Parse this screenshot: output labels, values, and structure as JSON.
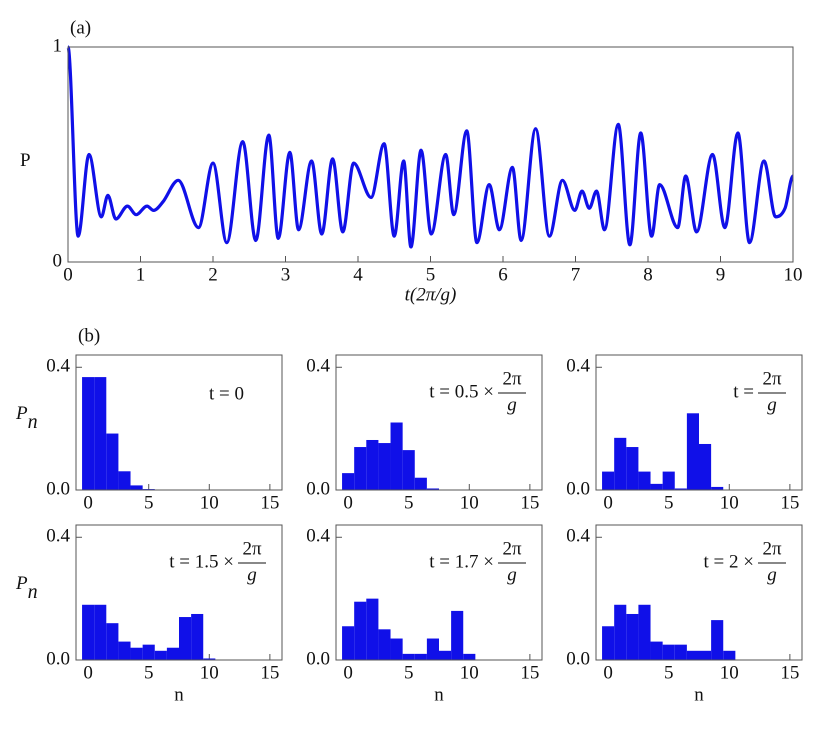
{
  "chart_data": [
    {
      "type": "line",
      "panel_label": "(a)",
      "ylabel": "P",
      "xlabel": "t(2π/g)",
      "color": "#1010e8",
      "xlim": [
        0,
        10
      ],
      "ylim": [
        0,
        1
      ],
      "xticks": [
        0,
        1,
        2,
        3,
        4,
        5,
        6,
        7,
        8,
        9,
        10
      ],
      "yticks": [
        0,
        1
      ],
      "x": [
        0,
        0.14,
        0.29,
        0.46,
        0.55,
        0.66,
        0.82,
        0.94,
        1.09,
        1.18,
        1.31,
        1.52,
        1.8,
        2.0,
        2.19,
        2.41,
        2.59,
        2.77,
        2.9,
        3.06,
        3.18,
        3.36,
        3.5,
        3.65,
        3.79,
        3.94,
        4.18,
        4.36,
        4.5,
        4.63,
        4.73,
        4.87,
        5.01,
        5.21,
        5.32,
        5.5,
        5.64,
        5.81,
        5.95,
        6.13,
        6.25,
        6.45,
        6.64,
        6.82,
        6.99,
        7.09,
        7.19,
        7.29,
        7.4,
        7.59,
        7.75,
        7.9,
        8.05,
        8.16,
        8.41,
        8.52,
        8.67,
        8.89,
        9.06,
        9.24,
        9.4,
        9.6,
        9.76,
        9.89,
        10
      ],
      "values": [
        1,
        0.12,
        0.5,
        0.21,
        0.31,
        0.2,
        0.26,
        0.22,
        0.26,
        0.24,
        0.28,
        0.38,
        0.16,
        0.46,
        0.09,
        0.56,
        0.1,
        0.59,
        0.11,
        0.51,
        0.15,
        0.47,
        0.13,
        0.48,
        0.14,
        0.46,
        0.3,
        0.55,
        0.12,
        0.47,
        0.07,
        0.52,
        0.13,
        0.5,
        0.22,
        0.61,
        0.09,
        0.36,
        0.15,
        0.44,
        0.1,
        0.62,
        0.12,
        0.38,
        0.24,
        0.33,
        0.25,
        0.33,
        0.15,
        0.64,
        0.08,
        0.6,
        0.12,
        0.36,
        0.16,
        0.4,
        0.14,
        0.5,
        0.16,
        0.6,
        0.09,
        0.47,
        0.21,
        0.25,
        0.4
      ]
    },
    {
      "type": "histogram",
      "panel_label": "(b)",
      "ylabel": "P",
      "ylabel_subscript": "n",
      "color": "#1010e8",
      "annotation": {
        "text": "t = 0"
      },
      "xlim": [
        -1,
        16
      ],
      "ylim": [
        0,
        0.44
      ],
      "xticks": [
        0,
        5,
        10,
        15
      ],
      "yticks": [
        {
          "value": 0,
          "label": "0.0"
        },
        0.4
      ],
      "bins": [
        -0.5,
        0.5,
        1.5,
        2.5,
        3.5,
        4.5,
        5.5,
        6.5,
        7.5,
        8.5,
        9.5,
        10.5,
        11.5,
        12.5,
        13.5,
        14.5,
        15.5
      ],
      "values": [
        0.368,
        0.368,
        0.184,
        0.061,
        0.015,
        0.003,
        0,
        0,
        0,
        0,
        0,
        0,
        0,
        0,
        0,
        0
      ]
    },
    {
      "type": "histogram",
      "color": "#1010e8",
      "annotation": {
        "text": "t = 0.5 ×",
        "numerator": "2π",
        "denominator": "g"
      },
      "xlim": [
        -1,
        16
      ],
      "ylim": [
        0,
        0.44
      ],
      "xticks": [
        0,
        5,
        10,
        15
      ],
      "yticks": [
        {
          "value": 0,
          "label": "0.0"
        },
        0.4
      ],
      "bins": [
        -0.5,
        0.5,
        1.5,
        2.5,
        3.5,
        4.5,
        5.5,
        6.5,
        7.5,
        8.5,
        9.5,
        10.5,
        11.5,
        12.5,
        13.5,
        14.5,
        15.5
      ],
      "values": [
        0.055,
        0.14,
        0.163,
        0.153,
        0.22,
        0.13,
        0.04,
        0.005,
        0,
        0,
        0,
        0,
        0,
        0,
        0,
        0
      ]
    },
    {
      "type": "histogram",
      "color": "#1010e8",
      "annotation": {
        "text": "t =",
        "numerator": "2π",
        "denominator": "g"
      },
      "xlim": [
        -1,
        16
      ],
      "ylim": [
        0,
        0.44
      ],
      "xticks": [
        0,
        5,
        10,
        15
      ],
      "yticks": [
        {
          "value": 0,
          "label": "0.0"
        },
        0.4
      ],
      "bins": [
        -0.5,
        0.5,
        1.5,
        2.5,
        3.5,
        4.5,
        5.5,
        6.5,
        7.5,
        8.5,
        9.5,
        10.5,
        11.5,
        12.5,
        13.5,
        14.5,
        15.5
      ],
      "values": [
        0.06,
        0.17,
        0.14,
        0.06,
        0.02,
        0.06,
        0.005,
        0.25,
        0.15,
        0.01,
        0,
        0,
        0,
        0,
        0,
        0
      ]
    },
    {
      "type": "histogram",
      "ylabel": "P",
      "ylabel_subscript": "n",
      "xlabel": "n",
      "color": "#1010e8",
      "annotation": {
        "text": "t = 1.5 ×",
        "numerator": "2π",
        "denominator": "g"
      },
      "xlim": [
        -1,
        16
      ],
      "ylim": [
        0,
        0.44
      ],
      "xticks": [
        0,
        5,
        10,
        15
      ],
      "yticks": [
        {
          "value": 0,
          "label": "0.0"
        },
        0.4
      ],
      "bins": [
        -0.5,
        0.5,
        1.5,
        2.5,
        3.5,
        4.5,
        5.5,
        6.5,
        7.5,
        8.5,
        9.5,
        10.5,
        11.5,
        12.5,
        13.5,
        14.5,
        15.5
      ],
      "values": [
        0.18,
        0.18,
        0.12,
        0.06,
        0.04,
        0.05,
        0.03,
        0.04,
        0.14,
        0.15,
        0.005,
        0,
        0,
        0,
        0,
        0
      ]
    },
    {
      "type": "histogram",
      "xlabel": "n",
      "color": "#1010e8",
      "annotation": {
        "text": "t = 1.7 ×",
        "numerator": "2π",
        "denominator": "g"
      },
      "xlim": [
        -1,
        16
      ],
      "ylim": [
        0,
        0.44
      ],
      "xticks": [
        0,
        5,
        10,
        15
      ],
      "yticks": [
        {
          "value": 0,
          "label": "0.0"
        },
        0.4
      ],
      "bins": [
        -0.5,
        0.5,
        1.5,
        2.5,
        3.5,
        4.5,
        5.5,
        6.5,
        7.5,
        8.5,
        9.5,
        10.5,
        11.5,
        12.5,
        13.5,
        14.5,
        15.5
      ],
      "values": [
        0.11,
        0.19,
        0.2,
        0.1,
        0.07,
        0.02,
        0.02,
        0.07,
        0.03,
        0.16,
        0.02,
        0,
        0,
        0,
        0,
        0
      ]
    },
    {
      "type": "histogram",
      "xlabel": "n",
      "color": "#1010e8",
      "annotation": {
        "text": "t = 2 ×",
        "numerator": "2π",
        "denominator": "g"
      },
      "xlim": [
        -1,
        16
      ],
      "ylim": [
        0,
        0.44
      ],
      "xticks": [
        0,
        5,
        10,
        15
      ],
      "yticks": [
        {
          "value": 0,
          "label": "0.0"
        },
        0.4
      ],
      "bins": [
        -0.5,
        0.5,
        1.5,
        2.5,
        3.5,
        4.5,
        5.5,
        6.5,
        7.5,
        8.5,
        9.5,
        10.5,
        11.5,
        12.5,
        13.5,
        14.5,
        15.5
      ],
      "values": [
        0.11,
        0.18,
        0.15,
        0.18,
        0.06,
        0.05,
        0.05,
        0.03,
        0.03,
        0.13,
        0.03,
        0,
        0,
        0,
        0,
        0
      ]
    }
  ]
}
